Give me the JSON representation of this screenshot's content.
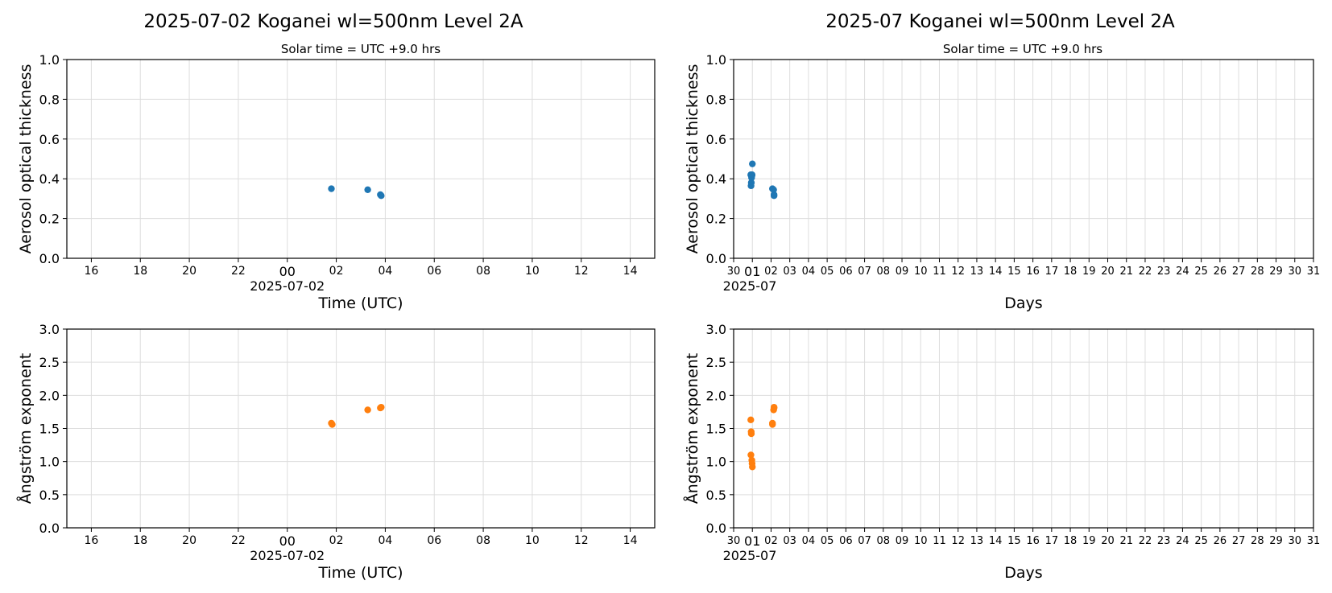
{
  "figure": {
    "left_title": "2025-07-02  Koganei  wl=500nm  Level 2A",
    "right_title": "2025-07  Koganei  wl=500nm  Level 2A",
    "left_subtitle": "Solar time = UTC +9.0 hrs",
    "right_subtitle": "Solar time = UTC +9.0 hrs"
  },
  "colors": {
    "aot": "#1f77b4",
    "angstrom": "#ff7f0e",
    "grid": "#dddddd"
  },
  "chart_data": [
    {
      "id": "daily-aot",
      "type": "scatter",
      "ylabel": "Aerosol optical thickness",
      "xlabel": "Time (UTC)",
      "ylim": [
        0,
        1.0
      ],
      "yticks": [
        "0.0",
        "0.2",
        "0.4",
        "0.6",
        "0.8",
        "1.0"
      ],
      "xlim": [
        "2025-07-01 15:00",
        "2025-07-02 15:00"
      ],
      "xticks": [
        "16",
        "18",
        "20",
        "22",
        "00",
        "02",
        "04",
        "06",
        "08",
        "10",
        "12",
        "14"
      ],
      "xaxis_date_label": "2025-07-02",
      "grid": true,
      "color": "#1f77b4",
      "points": [
        {
          "x": "2025-07-02 01:48",
          "y": 0.35
        },
        {
          "x": "2025-07-02 03:17",
          "y": 0.345
        },
        {
          "x": "2025-07-02 03:48",
          "y": 0.32
        },
        {
          "x": "2025-07-02 03:50",
          "y": 0.315
        }
      ]
    },
    {
      "id": "monthly-aot",
      "type": "scatter",
      "ylabel": "Aerosol optical thickness",
      "xlabel": "Days",
      "ylim": [
        0,
        1.0
      ],
      "yticks": [
        "0.0",
        "0.2",
        "0.4",
        "0.6",
        "0.8",
        "1.0"
      ],
      "xlim": [
        "2025-06-30",
        "2025-07-31"
      ],
      "xticks": [
        "30",
        "01",
        "02",
        "03",
        "04",
        "05",
        "06",
        "07",
        "08",
        "09",
        "10",
        "11",
        "12",
        "13",
        "14",
        "15",
        "16",
        "17",
        "18",
        "19",
        "20",
        "21",
        "22",
        "23",
        "24",
        "25",
        "26",
        "27",
        "28",
        "29",
        "30",
        "31"
      ],
      "xaxis_date_label": "2025-07",
      "grid": true,
      "color": "#1f77b4",
      "points": [
        {
          "x": "2025-06-30 22:00",
          "y": 0.42
        },
        {
          "x": "2025-06-30 22:20",
          "y": 0.365
        },
        {
          "x": "2025-06-30 22:40",
          "y": 0.38
        },
        {
          "x": "2025-06-30 23:00",
          "y": 0.405
        },
        {
          "x": "2025-06-30 23:20",
          "y": 0.415
        },
        {
          "x": "2025-06-30 23:40",
          "y": 0.42
        },
        {
          "x": "2025-07-01 00:00",
          "y": 0.475
        },
        {
          "x": "2025-07-02 01:48",
          "y": 0.35
        },
        {
          "x": "2025-07-02 03:17",
          "y": 0.345
        },
        {
          "x": "2025-07-02 03:48",
          "y": 0.32
        },
        {
          "x": "2025-07-02 03:50",
          "y": 0.315
        }
      ]
    },
    {
      "id": "daily-angstrom",
      "type": "scatter",
      "ylabel": "Ångström exponent",
      "xlabel": "Time (UTC)",
      "ylim": [
        0,
        3.0
      ],
      "yticks": [
        "0.0",
        "0.5",
        "1.0",
        "1.5",
        "2.0",
        "2.5",
        "3.0"
      ],
      "xlim": [
        "2025-07-01 15:00",
        "2025-07-02 15:00"
      ],
      "xticks": [
        "16",
        "18",
        "20",
        "22",
        "00",
        "02",
        "04",
        "06",
        "08",
        "10",
        "12",
        "14"
      ],
      "xaxis_date_label": "2025-07-02",
      "grid": true,
      "color": "#ff7f0e",
      "points": [
        {
          "x": "2025-07-02 01:48",
          "y": 1.58
        },
        {
          "x": "2025-07-02 01:50",
          "y": 1.56
        },
        {
          "x": "2025-07-02 03:17",
          "y": 1.78
        },
        {
          "x": "2025-07-02 03:48",
          "y": 1.81
        },
        {
          "x": "2025-07-02 03:50",
          "y": 1.82
        }
      ]
    },
    {
      "id": "monthly-angstrom",
      "type": "scatter",
      "ylabel": "Ångström exponent",
      "xlabel": "Days",
      "ylim": [
        0,
        3.0
      ],
      "yticks": [
        "0.0",
        "0.5",
        "1.0",
        "1.5",
        "2.0",
        "2.5",
        "3.0"
      ],
      "xlim": [
        "2025-06-30",
        "2025-07-31"
      ],
      "xticks": [
        "30",
        "01",
        "02",
        "03",
        "04",
        "05",
        "06",
        "07",
        "08",
        "09",
        "10",
        "11",
        "12",
        "13",
        "14",
        "15",
        "16",
        "17",
        "18",
        "19",
        "20",
        "21",
        "22",
        "23",
        "24",
        "25",
        "26",
        "27",
        "28",
        "29",
        "30",
        "31"
      ],
      "xaxis_date_label": "2025-07",
      "grid": true,
      "color": "#ff7f0e",
      "points": [
        {
          "x": "2025-06-30 22:00",
          "y": 1.63
        },
        {
          "x": "2025-06-30 22:10",
          "y": 1.1
        },
        {
          "x": "2025-06-30 22:30",
          "y": 1.45
        },
        {
          "x": "2025-06-30 22:40",
          "y": 1.42
        },
        {
          "x": "2025-06-30 23:20",
          "y": 1.02
        },
        {
          "x": "2025-06-30 23:40",
          "y": 0.97
        },
        {
          "x": "2025-07-01 00:00",
          "y": 0.92
        },
        {
          "x": "2025-07-02 01:48",
          "y": 1.58
        },
        {
          "x": "2025-07-02 01:50",
          "y": 1.56
        },
        {
          "x": "2025-07-02 03:17",
          "y": 1.78
        },
        {
          "x": "2025-07-02 03:48",
          "y": 1.81
        },
        {
          "x": "2025-07-02 03:50",
          "y": 1.82
        }
      ]
    }
  ]
}
